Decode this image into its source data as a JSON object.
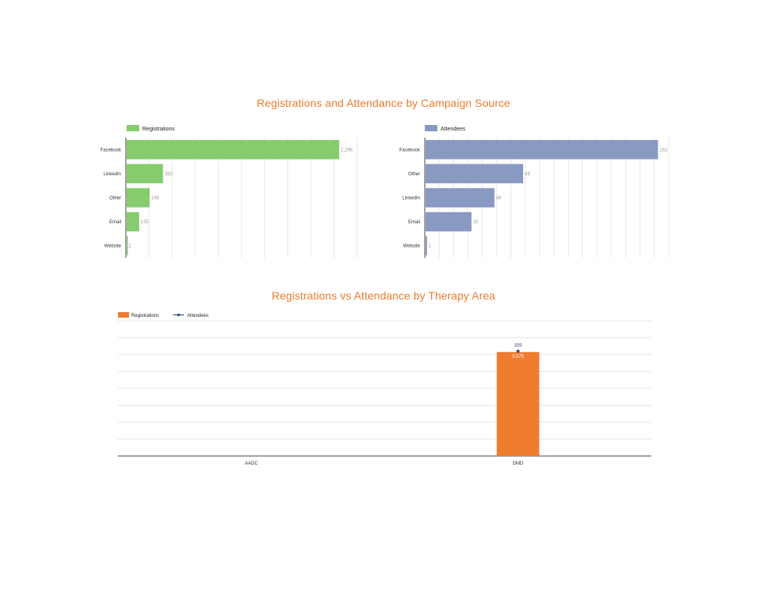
{
  "titles": {
    "top": "Registrations and Attendance by Campaign Source",
    "bottom": "Registrations vs Attendance by Therapy Area"
  },
  "colors": {
    "title": "#ef7c2f",
    "registrations_green": "#86cc6f",
    "attendees_blue": "#8899c2",
    "registrations_orange": "#ef7c2f",
    "attendees_line": "#3d4f87",
    "grid": "#e6e6e6",
    "axis": "#444444"
  },
  "chart_data": [
    {
      "type": "bar",
      "orientation": "horizontal",
      "categories": [
        "Facebook",
        "LinkedIn",
        "Other",
        "Email",
        "Website"
      ],
      "series": [
        {
          "name": "Registrations",
          "values": [
            2298,
            393,
            249,
            135,
            2
          ]
        }
      ],
      "value_labels": [
        "2,298",
        "393",
        "249",
        "135",
        "2"
      ],
      "xlim": [
        0,
        2500
      ],
      "grid": true,
      "legend": "top-left"
    },
    {
      "type": "bar",
      "orientation": "horizontal",
      "categories": [
        "Facebook",
        "Other",
        "LinkedIn",
        "Email",
        "Website"
      ],
      "series": [
        {
          "name": "Attendees",
          "values": [
            162,
            68,
            48,
            32,
            1
          ]
        }
      ],
      "value_labels": [
        "162",
        "68",
        "48",
        "32",
        "1"
      ],
      "xlim": [
        0,
        170
      ],
      "grid": true,
      "legend": "top-left"
    },
    {
      "type": "bar",
      "categories": [
        "AADC",
        "DMD"
      ],
      "series": [
        {
          "name": "Registrations",
          "kind": "bar",
          "values": [
            0,
            3075
          ],
          "value_labels": [
            "",
            "3,075"
          ]
        },
        {
          "name": "Attendees",
          "kind": "line",
          "values": [
            0,
            309
          ],
          "value_labels": [
            "",
            "309"
          ]
        }
      ],
      "ylim": [
        0,
        4000
      ],
      "grid": true,
      "legend": "top-left"
    }
  ]
}
